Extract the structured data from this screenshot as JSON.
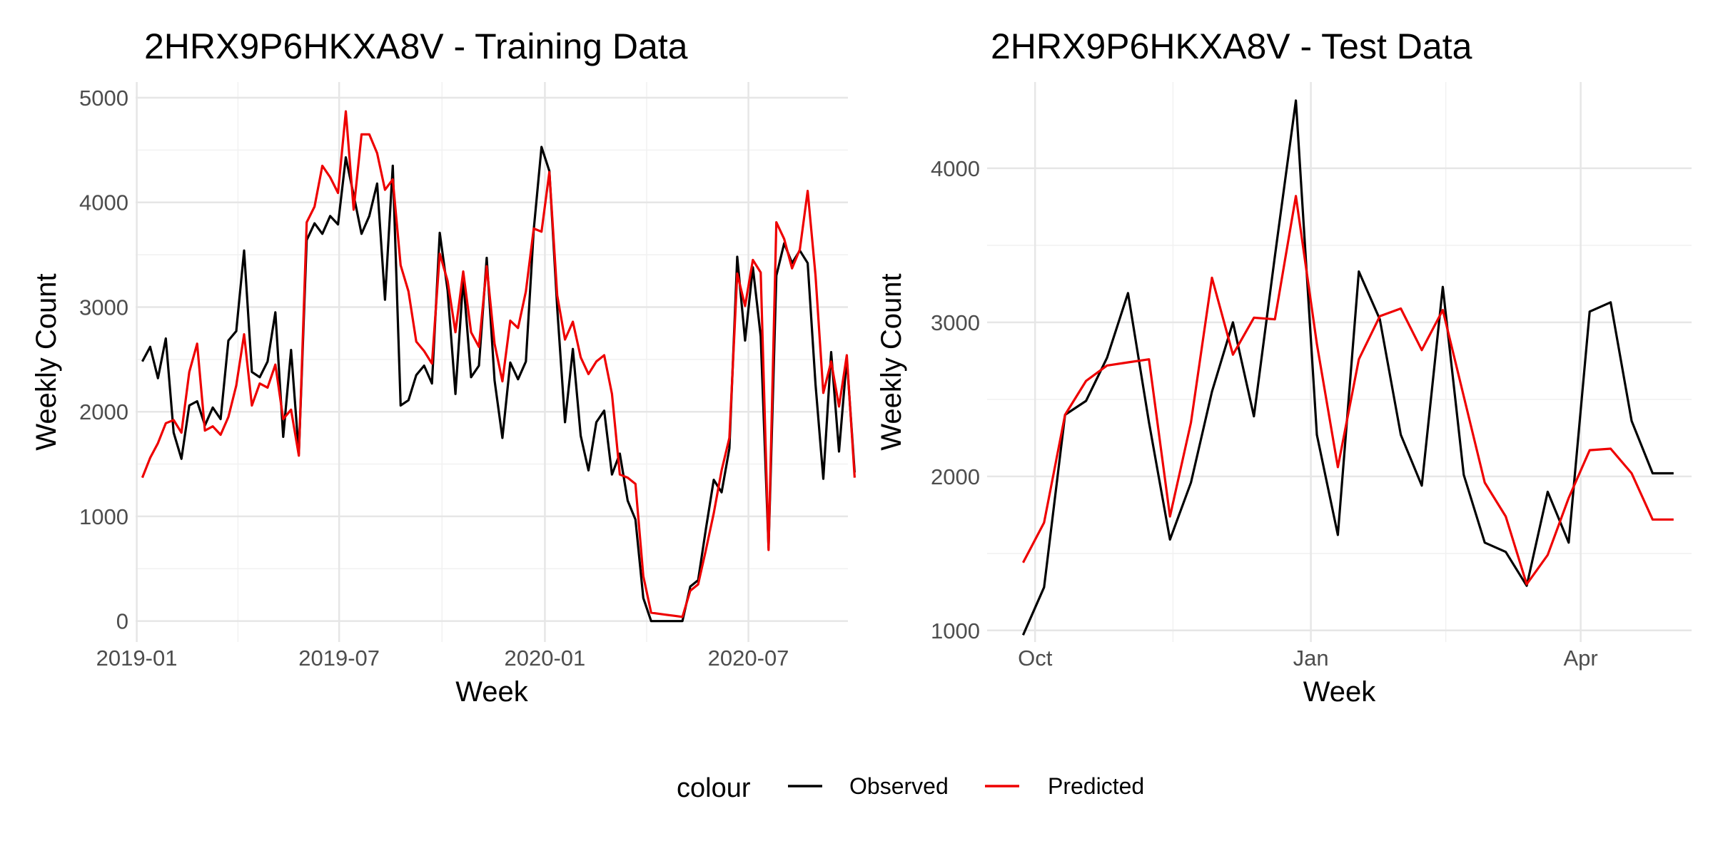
{
  "legend": {
    "title": "colour",
    "items": [
      {
        "label": "Observed",
        "color": "#000000"
      },
      {
        "label": "Predicted",
        "color": "#ee0000"
      }
    ]
  },
  "chart_data": [
    {
      "type": "line",
      "title": "2HRX9P6HKXA8V - Training Data",
      "xlabel": "Week",
      "ylabel": "Weekly Count",
      "xlim": [
        "2018-12-31",
        "2020-09-28"
      ],
      "ylim": [
        -200,
        5150
      ],
      "x_ticks": [
        {
          "date": "2019-01-01",
          "label": "2019-01"
        },
        {
          "date": "2019-07-01",
          "label": "2019-07"
        },
        {
          "date": "2020-01-01",
          "label": "2020-01"
        },
        {
          "date": "2020-07-01",
          "label": "2020-07"
        }
      ],
      "y_ticks": [
        0,
        1000,
        2000,
        3000,
        4000,
        5000
      ],
      "grid": true,
      "x": [
        "2019-01-06",
        "2019-01-13",
        "2019-01-20",
        "2019-01-27",
        "2019-02-03",
        "2019-02-10",
        "2019-02-17",
        "2019-02-24",
        "2019-03-03",
        "2019-03-10",
        "2019-03-17",
        "2019-03-24",
        "2019-03-31",
        "2019-04-07",
        "2019-04-14",
        "2019-04-21",
        "2019-04-28",
        "2019-05-05",
        "2019-05-12",
        "2019-05-19",
        "2019-05-26",
        "2019-06-02",
        "2019-06-09",
        "2019-06-16",
        "2019-06-23",
        "2019-06-30",
        "2019-07-07",
        "2019-07-14",
        "2019-07-21",
        "2019-07-28",
        "2019-08-04",
        "2019-08-11",
        "2019-08-18",
        "2019-08-25",
        "2019-09-01",
        "2019-09-08",
        "2019-09-15",
        "2019-09-22",
        "2019-09-29",
        "2019-10-06",
        "2019-10-13",
        "2019-10-20",
        "2019-10-27",
        "2019-11-03",
        "2019-11-10",
        "2019-11-17",
        "2019-11-24",
        "2019-12-01",
        "2019-12-08",
        "2019-12-15",
        "2019-12-22",
        "2019-12-29",
        "2020-01-05",
        "2020-01-12",
        "2020-01-19",
        "2020-01-26",
        "2020-02-02",
        "2020-02-09",
        "2020-02-16",
        "2020-02-23",
        "2020-03-01",
        "2020-03-08",
        "2020-03-15",
        "2020-03-22",
        "2020-03-29",
        "2020-04-05",
        "2020-04-12",
        "2020-04-19",
        "2020-04-26",
        "2020-05-03",
        "2020-05-10",
        "2020-05-17",
        "2020-05-24",
        "2020-05-31",
        "2020-06-07",
        "2020-06-14",
        "2020-06-21",
        "2020-06-28",
        "2020-07-05",
        "2020-07-12",
        "2020-07-19",
        "2020-07-26",
        "2020-08-02",
        "2020-08-09",
        "2020-08-16",
        "2020-08-23",
        "2020-08-30",
        "2020-09-06",
        "2020-09-13",
        "2020-09-20"
      ],
      "series": [
        {
          "name": "Observed",
          "color": "#000000",
          "values": [
            2480,
            2620,
            2320,
            2700,
            1800,
            1550,
            2060,
            2100,
            1870,
            2040,
            1930,
            2680,
            2770,
            3540,
            2380,
            2330,
            2480,
            2950,
            1760,
            2590,
            1600,
            3640,
            3800,
            3700,
            3870,
            3790,
            4430,
            4070,
            3700,
            3870,
            4180,
            3070,
            4350,
            2060,
            2110,
            2350,
            2440,
            2270,
            3710,
            3160,
            2170,
            3270,
            2330,
            2440,
            3470,
            2300,
            1750,
            2470,
            2310,
            2480,
            3740,
            4530,
            4300,
            2990,
            1900,
            2600,
            1770,
            1440,
            1900,
            2010,
            1400,
            1600,
            1150,
            970,
            220,
            0,
            0,
            0,
            0,
            0,
            330,
            390,
            880,
            1350,
            1230,
            1650,
            3480,
            2680,
            3380,
            2720,
            700,
            3300,
            3610,
            3420,
            3540,
            3420,
            2260,
            1360,
            2570,
            1620
          ],
          "values_end": [
            2510,
            1420
          ]
        },
        {
          "name": "Predicted",
          "color": "#ee0000",
          "values": [
            1370,
            1560,
            1700,
            1890,
            1920,
            1800,
            2380,
            2650,
            1820,
            1860,
            1780,
            1950,
            2250,
            2740,
            2060,
            2270,
            2230,
            2450,
            1930,
            2020,
            1580,
            3810,
            3960,
            4350,
            4240,
            4090,
            4870,
            3930,
            4650,
            4650,
            4470,
            4120,
            4220,
            3400,
            3150,
            2670,
            2580,
            2460,
            3510,
            3250,
            2760,
            3340,
            2760,
            2620,
            3390,
            2650,
            2290,
            2870,
            2800,
            3150,
            3750,
            3720,
            4290,
            3110,
            2690,
            2860,
            2520,
            2360,
            2480,
            2540,
            2170,
            1400,
            1370,
            1310,
            430,
            80,
            70,
            60,
            50,
            40,
            290,
            350,
            680,
            1030,
            1440,
            1750,
            3320,
            3010,
            3450,
            3330,
            680,
            3810,
            3650,
            3370,
            3550,
            4110,
            3300,
            2180,
            2480,
            2050
          ],
          "values_end": [
            2540,
            1370
          ]
        }
      ]
    },
    {
      "type": "line",
      "title": "2HRX9P6HKXA8V - Test Data",
      "xlabel": "Week",
      "ylabel": "Weekly Count",
      "xlim": [
        "2020-09-15",
        "2021-05-08"
      ],
      "ylim": [
        925,
        4560
      ],
      "x_ticks": [
        {
          "date": "2020-10-01",
          "label": "Oct"
        },
        {
          "date": "2021-01-01",
          "label": "Jan"
        },
        {
          "date": "2021-04-01",
          "label": "Apr"
        }
      ],
      "y_ticks": [
        1000,
        2000,
        3000,
        4000
      ],
      "grid": true,
      "x": [
        "2020-09-27",
        "2020-10-04",
        "2020-10-11",
        "2020-10-18",
        "2020-10-25",
        "2020-11-01",
        "2020-11-08",
        "2020-11-15",
        "2020-11-22",
        "2020-11-29",
        "2020-12-06",
        "2020-12-13",
        "2020-12-20",
        "2020-12-27",
        "2021-01-03",
        "2021-01-10",
        "2021-01-17",
        "2021-01-24",
        "2021-01-31",
        "2021-02-07",
        "2021-02-14",
        "2021-02-21",
        "2021-02-28",
        "2021-03-07",
        "2021-03-14",
        "2021-03-21",
        "2021-03-28",
        "2021-04-04",
        "2021-04-11",
        "2021-04-18",
        "2021-04-25",
        "2021-05-02"
      ],
      "series": [
        {
          "name": "Observed",
          "color": "#000000",
          "values": [
            970,
            1280,
            2400,
            2490,
            2770,
            3190,
            2350,
            1590,
            1960,
            2550,
            3000,
            2390,
            3430,
            4440,
            2270,
            1620,
            3330,
            3020,
            2270,
            1940,
            3230,
            2010,
            1570,
            1510,
            1290,
            1900,
            1570,
            3070,
            3130,
            2360,
            2020,
            2020
          ]
        },
        {
          "name": "Predicted",
          "color": "#ee0000",
          "values": [
            1440,
            1700,
            2400,
            2620,
            2720,
            2740,
            2760,
            1740,
            2350,
            3290,
            2790,
            3030,
            3020,
            3820,
            2860,
            2060,
            2760,
            3040,
            3090,
            2820,
            3080,
            2520,
            1960,
            1740,
            1300,
            1490,
            1860,
            2170,
            2180,
            2020,
            1720,
            1720
          ]
        }
      ]
    }
  ]
}
